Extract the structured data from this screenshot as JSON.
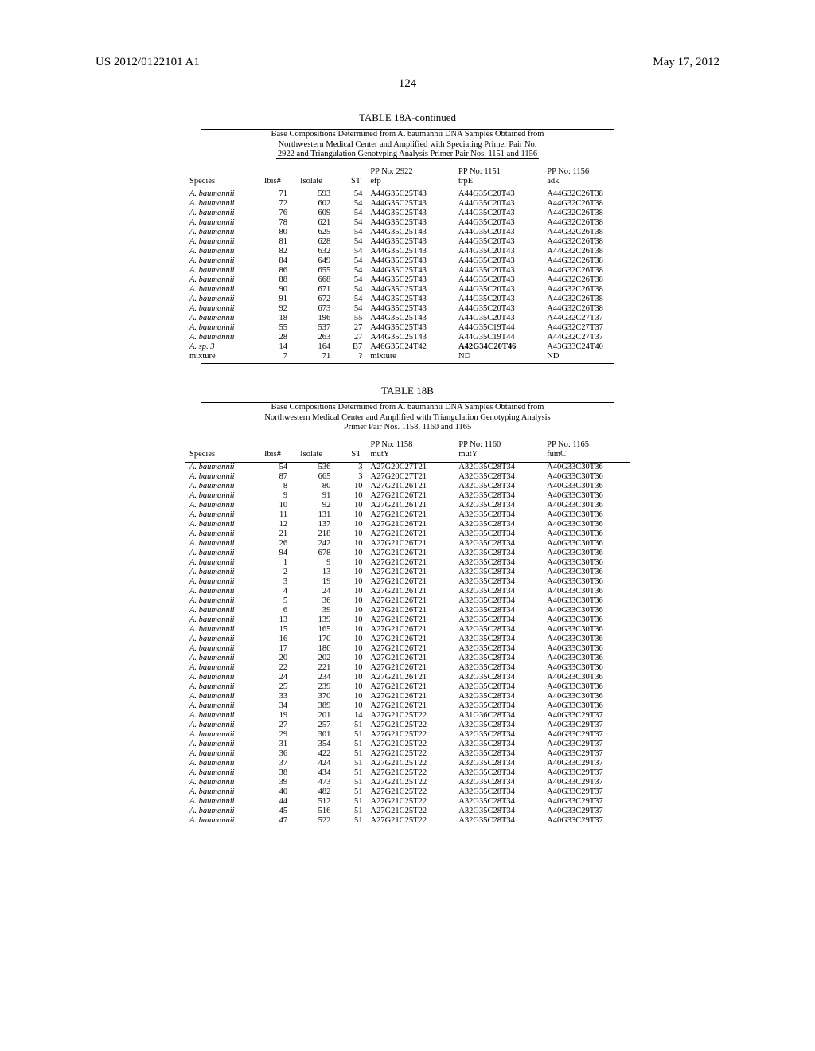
{
  "header": {
    "pub_no": "US 2012/0122101 A1",
    "date": "May 17, 2012",
    "page_num": "124"
  },
  "table18a": {
    "title": "TABLE 18A-continued",
    "subtitle": [
      "Base Compositions Determined from A. baumannii DNA Samples Obtained from",
      "Northwestern Medical Center and Amplified with Speciating Primer Pair No.",
      "2922 and Triangulation Genotyping Analysis Primer Pair Nos. 1151 and 1156"
    ],
    "cols": {
      "species": "Species",
      "ibis": "Ibis#",
      "isolate": "Isolate",
      "st": "ST",
      "pp2922": "PP No: 2922",
      "pp2922_sub": "efp",
      "pp1151": "PP No: 1151",
      "pp1151_sub": "trpE",
      "pp1156": "PP No: 1156",
      "pp1156_sub": "adk"
    },
    "rows": [
      {
        "sp": "A. baumannii",
        "ibis": "71",
        "iso": "593",
        "st": "54",
        "c1": "A44G35C25T43",
        "c2": "A44G35C20T43",
        "c3": "A44G32C26T38"
      },
      {
        "sp": "A. baumannii",
        "ibis": "72",
        "iso": "602",
        "st": "54",
        "c1": "A44G35C25T43",
        "c2": "A44G35C20T43",
        "c3": "A44G32C26T38"
      },
      {
        "sp": "A. baumannii",
        "ibis": "76",
        "iso": "609",
        "st": "54",
        "c1": "A44G35C25T43",
        "c2": "A44G35C20T43",
        "c3": "A44G32C26T38"
      },
      {
        "sp": "A. baumannii",
        "ibis": "78",
        "iso": "621",
        "st": "54",
        "c1": "A44G35C25T43",
        "c2": "A44G35C20T43",
        "c3": "A44G32C26T38"
      },
      {
        "sp": "A. baumannii",
        "ibis": "80",
        "iso": "625",
        "st": "54",
        "c1": "A44G35C25T43",
        "c2": "A44G35C20T43",
        "c3": "A44G32C26T38"
      },
      {
        "sp": "A. baumannii",
        "ibis": "81",
        "iso": "628",
        "st": "54",
        "c1": "A44G35C25T43",
        "c2": "A44G35C20T43",
        "c3": "A44G32C26T38"
      },
      {
        "sp": "A. baumannii",
        "ibis": "82",
        "iso": "632",
        "st": "54",
        "c1": "A44G35C25T43",
        "c2": "A44G35C20T43",
        "c3": "A44G32C26T38"
      },
      {
        "sp": "A. baumannii",
        "ibis": "84",
        "iso": "649",
        "st": "54",
        "c1": "A44G35C25T43",
        "c2": "A44G35C20T43",
        "c3": "A44G32C26T38"
      },
      {
        "sp": "A. baumannii",
        "ibis": "86",
        "iso": "655",
        "st": "54",
        "c1": "A44G35C25T43",
        "c2": "A44G35C20T43",
        "c3": "A44G32C26T38"
      },
      {
        "sp": "A. baumannii",
        "ibis": "88",
        "iso": "668",
        "st": "54",
        "c1": "A44G35C25T43",
        "c2": "A44G35C20T43",
        "c3": "A44G32C26T38"
      },
      {
        "sp": "A. baumannii",
        "ibis": "90",
        "iso": "671",
        "st": "54",
        "c1": "A44G35C25T43",
        "c2": "A44G35C20T43",
        "c3": "A44G32C26T38"
      },
      {
        "sp": "A. baumannii",
        "ibis": "91",
        "iso": "672",
        "st": "54",
        "c1": "A44G35C25T43",
        "c2": "A44G35C20T43",
        "c3": "A44G32C26T38"
      },
      {
        "sp": "A. baumannii",
        "ibis": "92",
        "iso": "673",
        "st": "54",
        "c1": "A44G35C25T43",
        "c2": "A44G35C20T43",
        "c3": "A44G32C26T38"
      },
      {
        "sp": "A. baumannii",
        "ibis": "18",
        "iso": "196",
        "st": "55",
        "c1": "A44G35C25T43",
        "c2": "A44G35C20T43",
        "c3": "A44G32C27T37"
      },
      {
        "sp": "A. baumannii",
        "ibis": "55",
        "iso": "537",
        "st": "27",
        "c1": "A44G35C25T43",
        "c2": "A44G35C19T44",
        "c3": "A44G32C27T37"
      },
      {
        "sp": "A. baumannii",
        "ibis": "28",
        "iso": "263",
        "st": "27",
        "c1": "A44G35C25T43",
        "c2": "A44G35C19T44",
        "c3": "A44G32C27T37"
      },
      {
        "sp": "A. sp. 3",
        "ibis": "14",
        "iso": "164",
        "st": "B7",
        "c1": "A46G35C24T42",
        "c2": "A42G34C20T46",
        "c2bold": true,
        "c3": "A43G33C24T40"
      },
      {
        "sp": "mixture",
        "sp_plain": true,
        "ibis": "7",
        "iso": "71",
        "st": "?",
        "c1": "mixture",
        "c2": "ND",
        "c3": "ND"
      }
    ]
  },
  "table18b": {
    "title": "TABLE 18B",
    "subtitle": [
      "Base Compositions Determined from A. baumannii DNA Samples Obtained from",
      "Northwestern Medical Center and Amplified with Triangulation Genotyping Analysis",
      "Primer Pair Nos. 1158, 1160 and 1165"
    ],
    "cols": {
      "species": "Species",
      "ibis": "Ibis#",
      "isolate": "Isolate",
      "st": "ST",
      "pp1158": "PP No: 1158",
      "pp1158_sub": "mutY",
      "pp1160": "PP No: 1160",
      "pp1160_sub": "mutY",
      "pp1165": "PP No: 1165",
      "pp1165_sub": "fumC"
    },
    "rows": [
      {
        "sp": "A. baumannii",
        "ibis": "54",
        "iso": "536",
        "st": "3",
        "c1": "A27G20C27T21",
        "c2": "A32G35C28T34",
        "c3": "A40G33C30T36"
      },
      {
        "sp": "A. baumannii",
        "ibis": "87",
        "iso": "665",
        "st": "3",
        "c1": "A27G20C27T21",
        "c2": "A32G35C28T34",
        "c3": "A40G33C30T36"
      },
      {
        "sp": "A. baumannii",
        "ibis": "8",
        "iso": "80",
        "st": "10",
        "c1": "A27G21C26T21",
        "c2": "A32G35C28T34",
        "c3": "A40G33C30T36"
      },
      {
        "sp": "A. baumannii",
        "ibis": "9",
        "iso": "91",
        "st": "10",
        "c1": "A27G21C26T21",
        "c2": "A32G35C28T34",
        "c3": "A40G33C30T36"
      },
      {
        "sp": "A. baumannii",
        "ibis": "10",
        "iso": "92",
        "st": "10",
        "c1": "A27G21C26T21",
        "c2": "A32G35C28T34",
        "c3": "A40G33C30T36"
      },
      {
        "sp": "A. baumannii",
        "ibis": "11",
        "iso": "131",
        "st": "10",
        "c1": "A27G21C26T21",
        "c2": "A32G35C28T34",
        "c3": "A40G33C30T36"
      },
      {
        "sp": "A. baumannii",
        "ibis": "12",
        "iso": "137",
        "st": "10",
        "c1": "A27G21C26T21",
        "c2": "A32G35C28T34",
        "c3": "A40G33C30T36"
      },
      {
        "sp": "A. baumannii",
        "ibis": "21",
        "iso": "218",
        "st": "10",
        "c1": "A27G21C26T21",
        "c2": "A32G35C28T34",
        "c3": "A40G33C30T36"
      },
      {
        "sp": "A. baumannii",
        "ibis": "26",
        "iso": "242",
        "st": "10",
        "c1": "A27G21C26T21",
        "c2": "A32G35C28T34",
        "c3": "A40G33C30T36"
      },
      {
        "sp": "A. baumannii",
        "ibis": "94",
        "iso": "678",
        "st": "10",
        "c1": "A27G21C26T21",
        "c2": "A32G35C28T34",
        "c3": "A40G33C30T36"
      },
      {
        "sp": "A. baumannii",
        "ibis": "1",
        "iso": "9",
        "st": "10",
        "c1": "A27G21C26T21",
        "c2": "A32G35C28T34",
        "c3": "A40G33C30T36"
      },
      {
        "sp": "A. baumannii",
        "ibis": "2",
        "iso": "13",
        "st": "10",
        "c1": "A27G21C26T21",
        "c2": "A32G35C28T34",
        "c3": "A40G33C30T36"
      },
      {
        "sp": "A. baumannii",
        "ibis": "3",
        "iso": "19",
        "st": "10",
        "c1": "A27G21C26T21",
        "c2": "A32G35C28T34",
        "c3": "A40G33C30T36"
      },
      {
        "sp": "A. baumannii",
        "ibis": "4",
        "iso": "24",
        "st": "10",
        "c1": "A27G21C26T21",
        "c2": "A32G35C28T34",
        "c3": "A40G33C30T36"
      },
      {
        "sp": "A. baumannii",
        "ibis": "5",
        "iso": "36",
        "st": "10",
        "c1": "A27G21C26T21",
        "c2": "A32G35C28T34",
        "c3": "A40G33C30T36"
      },
      {
        "sp": "A. baumannii",
        "ibis": "6",
        "iso": "39",
        "st": "10",
        "c1": "A27G21C26T21",
        "c2": "A32G35C28T34",
        "c3": "A40G33C30T36"
      },
      {
        "sp": "A. baumannii",
        "ibis": "13",
        "iso": "139",
        "st": "10",
        "c1": "A27G21C26T21",
        "c2": "A32G35C28T34",
        "c3": "A40G33C30T36"
      },
      {
        "sp": "A. baumannii",
        "ibis": "15",
        "iso": "165",
        "st": "10",
        "c1": "A27G21C26T21",
        "c2": "A32G35C28T34",
        "c3": "A40G33C30T36"
      },
      {
        "sp": "A. baumannii",
        "ibis": "16",
        "iso": "170",
        "st": "10",
        "c1": "A27G21C26T21",
        "c2": "A32G35C28T34",
        "c3": "A40G33C30T36"
      },
      {
        "sp": "A. baumannii",
        "ibis": "17",
        "iso": "186",
        "st": "10",
        "c1": "A27G21C26T21",
        "c2": "A32G35C28T34",
        "c3": "A40G33C30T36"
      },
      {
        "sp": "A. baumannii",
        "ibis": "20",
        "iso": "202",
        "st": "10",
        "c1": "A27G21C26T21",
        "c2": "A32G35C28T34",
        "c3": "A40G33C30T36"
      },
      {
        "sp": "A. baumannii",
        "ibis": "22",
        "iso": "221",
        "st": "10",
        "c1": "A27G21C26T21",
        "c2": "A32G35C28T34",
        "c3": "A40G33C30T36"
      },
      {
        "sp": "A. baumannii",
        "ibis": "24",
        "iso": "234",
        "st": "10",
        "c1": "A27G21C26T21",
        "c2": "A32G35C28T34",
        "c3": "A40G33C30T36"
      },
      {
        "sp": "A. baumannii",
        "ibis": "25",
        "iso": "239",
        "st": "10",
        "c1": "A27G21C26T21",
        "c2": "A32G35C28T34",
        "c3": "A40G33C30T36"
      },
      {
        "sp": "A. baumannii",
        "ibis": "33",
        "iso": "370",
        "st": "10",
        "c1": "A27G21C26T21",
        "c2": "A32G35C28T34",
        "c3": "A40G33C30T36"
      },
      {
        "sp": "A. baumannii",
        "ibis": "34",
        "iso": "389",
        "st": "10",
        "c1": "A27G21C26T21",
        "c2": "A32G35C28T34",
        "c3": "A40G33C30T36"
      },
      {
        "sp": "A. baumannii",
        "ibis": "19",
        "iso": "201",
        "st": "14",
        "c1": "A27G21C25T22",
        "c2": "A31G36C28T34",
        "c3": "A40G33C29T37"
      },
      {
        "sp": "A. baumannii",
        "ibis": "27",
        "iso": "257",
        "st": "51",
        "c1": "A27G21C25T22",
        "c2": "A32G35C28T34",
        "c3": "A40G33C29T37"
      },
      {
        "sp": "A. baumannii",
        "ibis": "29",
        "iso": "301",
        "st": "51",
        "c1": "A27G21C25T22",
        "c2": "A32G35C28T34",
        "c3": "A40G33C29T37"
      },
      {
        "sp": "A. baumannii",
        "ibis": "31",
        "iso": "354",
        "st": "51",
        "c1": "A27G21C25T22",
        "c2": "A32G35C28T34",
        "c3": "A40G33C29T37"
      },
      {
        "sp": "A. baumannii",
        "ibis": "36",
        "iso": "422",
        "st": "51",
        "c1": "A27G21C25T22",
        "c2": "A32G35C28T34",
        "c3": "A40G33C29T37"
      },
      {
        "sp": "A. baumannii",
        "ibis": "37",
        "iso": "424",
        "st": "51",
        "c1": "A27G21C25T22",
        "c2": "A32G35C28T34",
        "c3": "A40G33C29T37"
      },
      {
        "sp": "A. baumannii",
        "ibis": "38",
        "iso": "434",
        "st": "51",
        "c1": "A27G21C25T22",
        "c2": "A32G35C28T34",
        "c3": "A40G33C29T37"
      },
      {
        "sp": "A. baumannii",
        "ibis": "39",
        "iso": "473",
        "st": "51",
        "c1": "A27G21C25T22",
        "c2": "A32G35C28T34",
        "c3": "A40G33C29T37"
      },
      {
        "sp": "A. baumannii",
        "ibis": "40",
        "iso": "482",
        "st": "51",
        "c1": "A27G21C25T22",
        "c2": "A32G35C28T34",
        "c3": "A40G33C29T37"
      },
      {
        "sp": "A. baumannii",
        "ibis": "44",
        "iso": "512",
        "st": "51",
        "c1": "A27G21C25T22",
        "c2": "A32G35C28T34",
        "c3": "A40G33C29T37"
      },
      {
        "sp": "A. baumannii",
        "ibis": "45",
        "iso": "516",
        "st": "51",
        "c1": "A27G21C25T22",
        "c2": "A32G35C28T34",
        "c3": "A40G33C29T37"
      },
      {
        "sp": "A. baumannii",
        "ibis": "47",
        "iso": "522",
        "st": "51",
        "c1": "A27G21C25T22",
        "c2": "A32G35C28T34",
        "c3": "A40G33C29T37"
      }
    ]
  }
}
